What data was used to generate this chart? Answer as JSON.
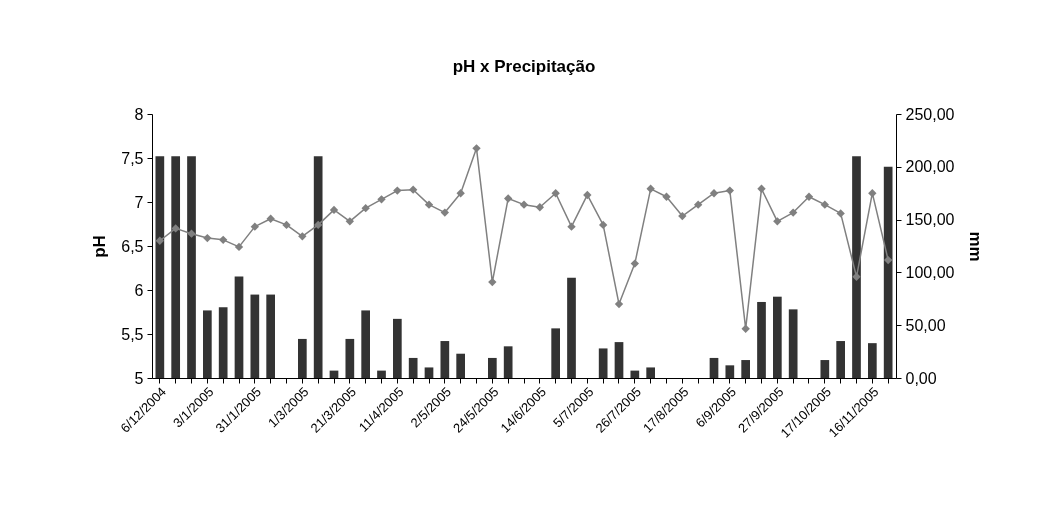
{
  "chart_data": {
    "type": "bar",
    "title": "pH x Precipitação",
    "ylabel": "pH",
    "y2label": "mm",
    "categories": [
      "6/12/2004",
      null,
      null,
      "3/1/2005",
      null,
      null,
      "31/1/2005",
      null,
      null,
      "1/3/2005",
      null,
      null,
      "21/3/2005",
      null,
      null,
      "11/4/2005",
      null,
      null,
      "2/5/2005",
      null,
      null,
      "24/5/2005",
      null,
      null,
      "14/6/2005",
      null,
      null,
      "5/7/2005",
      null,
      null,
      "26/7/2005",
      null,
      null,
      "17/8/2005",
      null,
      null,
      "6/9/2005",
      null,
      null,
      "27/9/2005",
      null,
      null,
      "17/10/2005",
      null,
      null,
      "16/11/2005",
      null
    ],
    "series": [
      {
        "axis": "y2",
        "color": "#333333",
        "values": [
          210,
          210,
          210,
          64,
          67,
          96,
          79,
          79,
          null,
          37,
          210,
          7,
          37,
          64,
          7,
          56,
          19,
          10,
          35,
          23,
          null,
          19,
          30,
          null,
          null,
          47,
          95,
          null,
          28,
          34,
          7,
          10,
          null,
          null,
          null,
          19,
          12,
          17,
          72,
          77,
          65,
          null,
          17,
          35,
          210,
          33,
          200
        ]
      },
      {
        "type": "line",
        "color": "#808080",
        "marker": "diamond",
        "line_style": "solid",
        "values": [
          6.56,
          6.7,
          6.64,
          6.59,
          6.57,
          6.49,
          6.72,
          6.81,
          6.74,
          6.61,
          6.74,
          6.91,
          6.78,
          6.93,
          7.03,
          7.13,
          7.14,
          6.97,
          6.88,
          7.1,
          7.61,
          6.09,
          7.04,
          6.97,
          6.94,
          7.1,
          6.72,
          7.08,
          6.74,
          5.84,
          6.3,
          7.15,
          7.06,
          6.84,
          6.97,
          7.1,
          7.13,
          5.56,
          7.15,
          6.78,
          6.88,
          7.06,
          6.97,
          6.87,
          6.15,
          7.1,
          6.34
        ]
      }
    ],
    "ylim": [
      5,
      8
    ],
    "yticks": [
      5,
      {
        "value": 5.5,
        "label": "5,5"
      },
      6,
      {
        "value": 6.5,
        "label": "6,5"
      },
      7,
      {
        "value": 7.5,
        "label": "7,5"
      },
      8
    ],
    "y2lim": [
      0,
      250
    ],
    "y2ticks": [
      {
        "value": 0,
        "label": "0,00"
      },
      {
        "value": 50,
        "label": "50,00"
      },
      {
        "value": 100,
        "label": "100,00"
      },
      {
        "value": 150,
        "label": "150,00"
      },
      {
        "value": 200,
        "label": "200,00"
      },
      {
        "value": 250,
        "label": "250,00"
      }
    ],
    "grid": false
  }
}
